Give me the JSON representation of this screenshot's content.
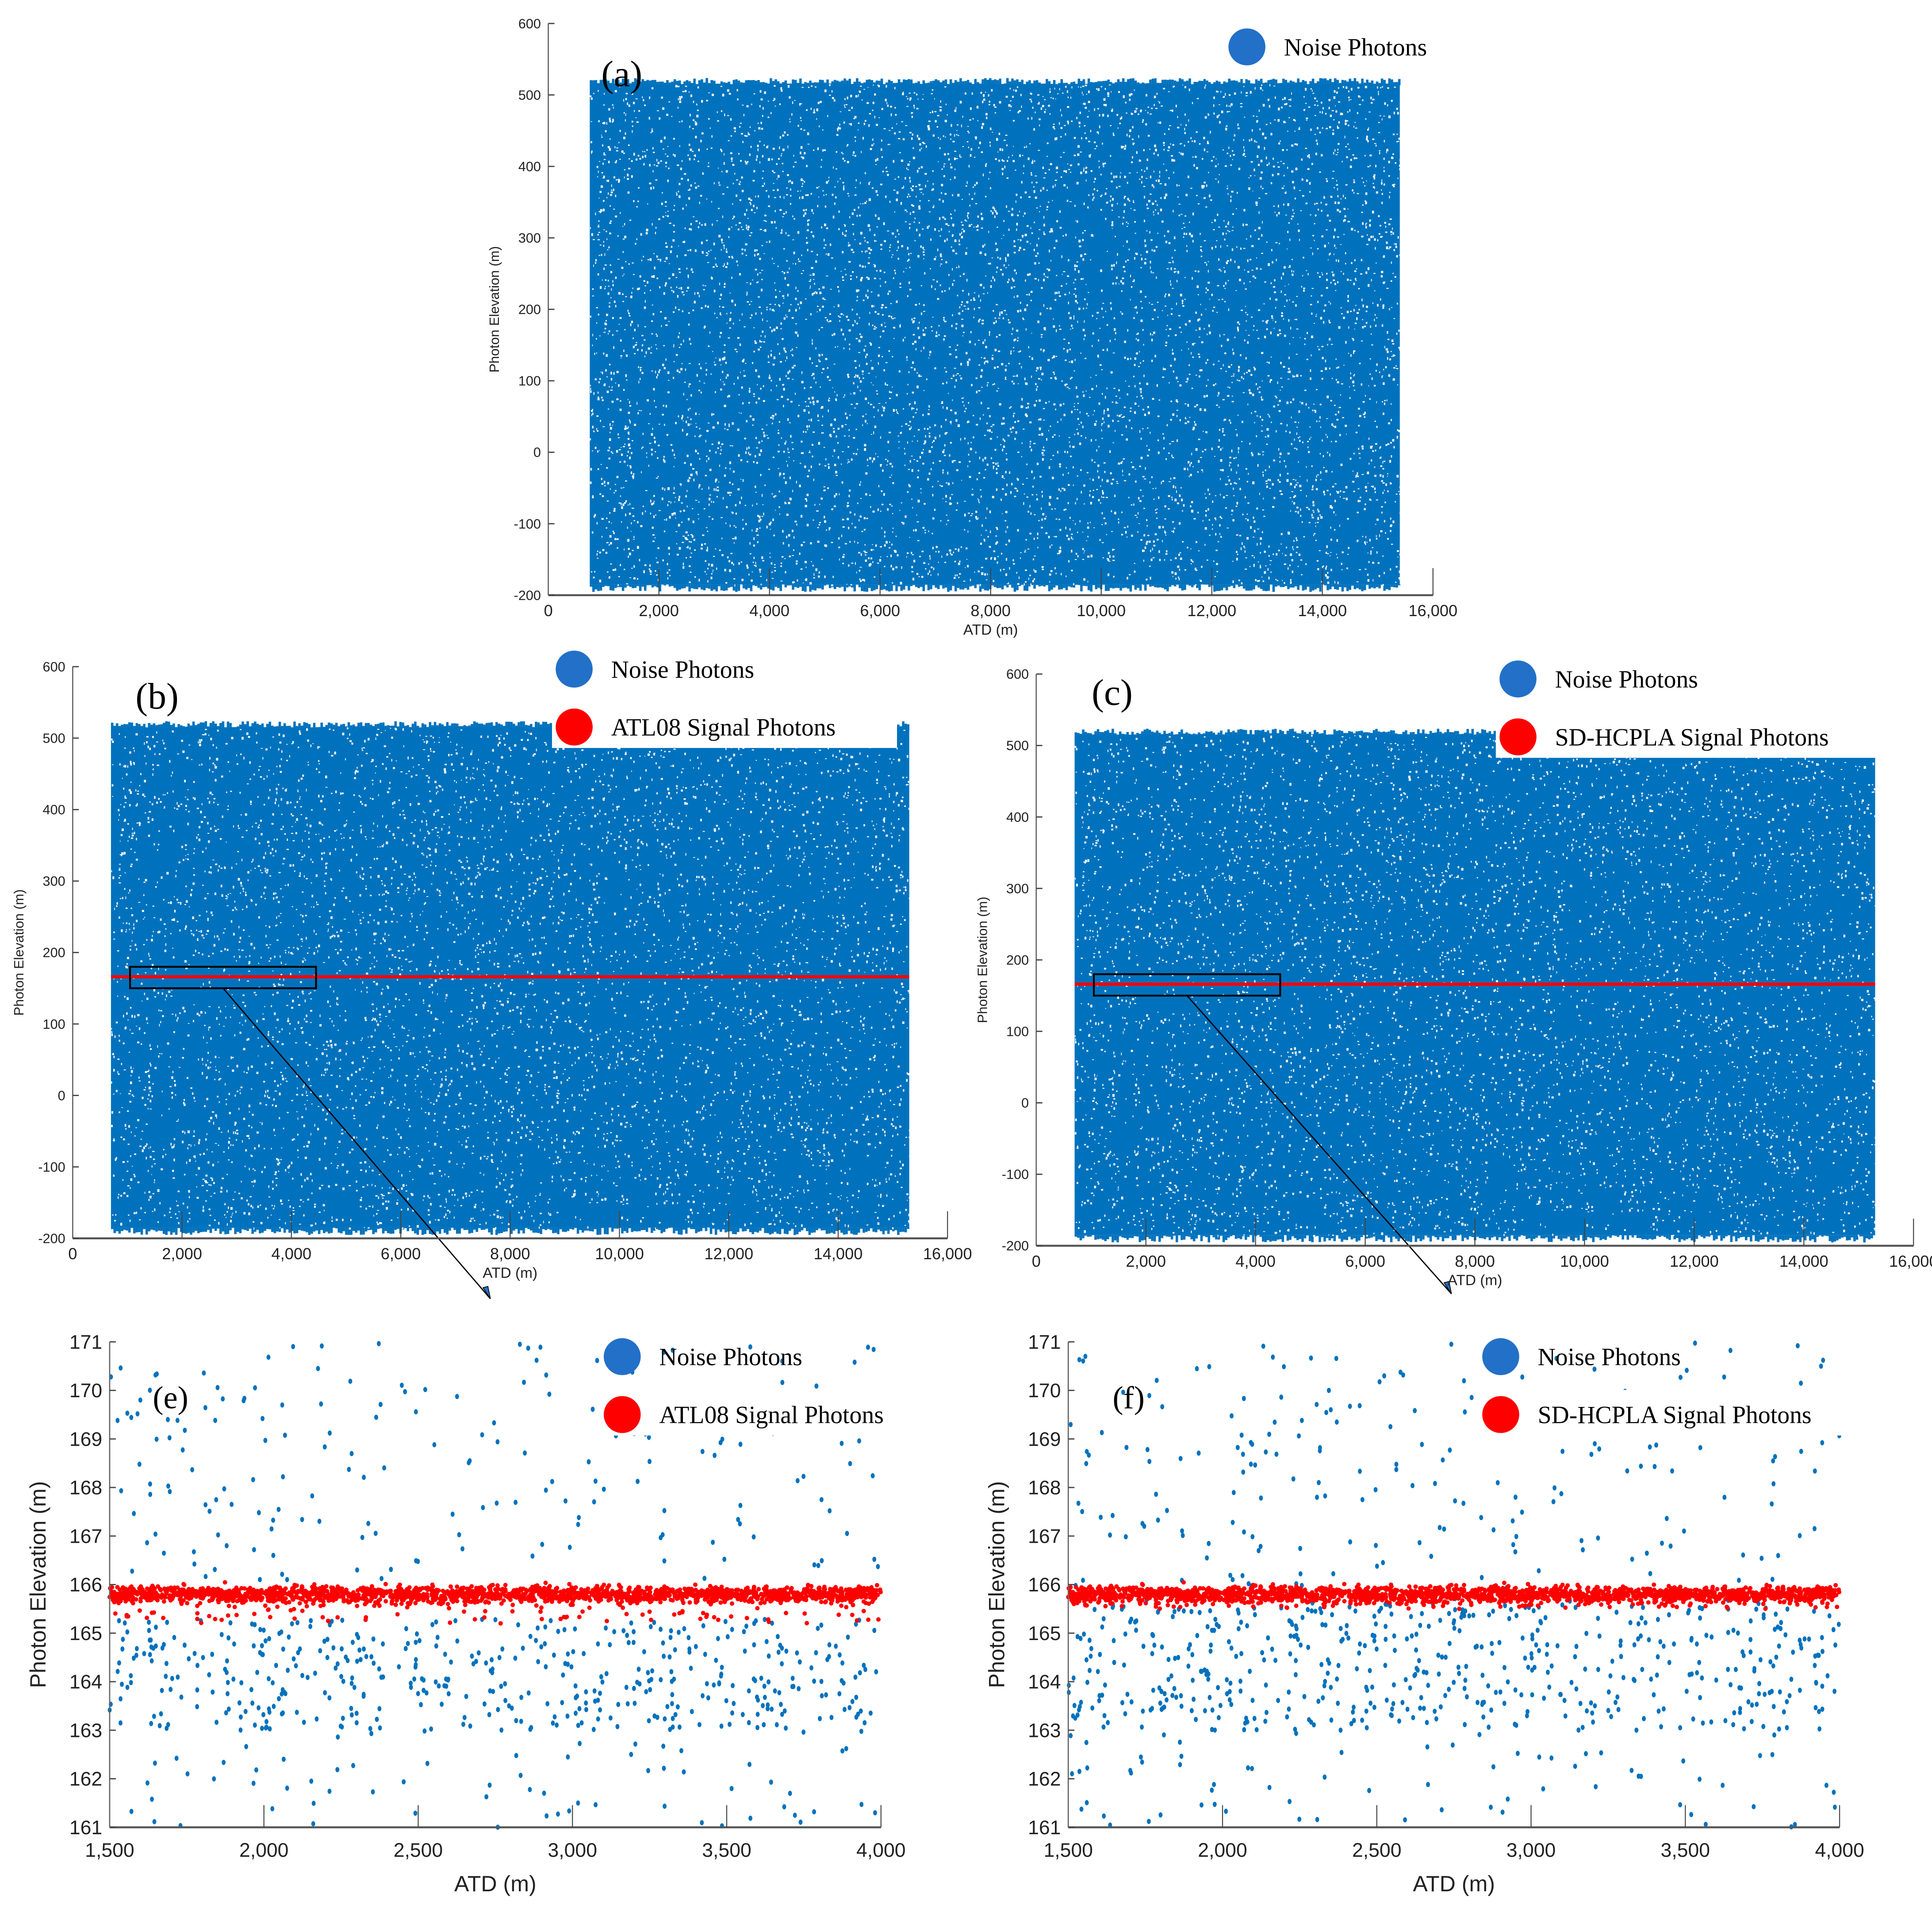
{
  "colors": {
    "noise": "#0072BD",
    "noise_legend": "#2370C8",
    "signal": "#FF0000",
    "axis": "#666666",
    "text": "#000000"
  },
  "chart_data": [
    {
      "id": "a",
      "type": "scatter",
      "panel_label": "(a)",
      "title": "",
      "xlabel": "ATD (m)",
      "ylabel": "Photon Elevation (m)",
      "xlim": [
        0,
        16000
      ],
      "ylim": [
        -200,
        600
      ],
      "xticks": [
        0,
        2000,
        4000,
        6000,
        8000,
        10000,
        12000,
        14000,
        16000
      ],
      "xtick_labels": [
        "0",
        "2,000",
        "4,000",
        "6,000",
        "8,000",
        "10,000",
        "12,000",
        "14,000",
        "16,000"
      ],
      "yticks": [
        -200,
        -100,
        0,
        100,
        200,
        300,
        400,
        500,
        600
      ],
      "ytick_labels": [
        "-200",
        "-100",
        "0",
        "100",
        "200",
        "300",
        "400",
        "500",
        "600"
      ],
      "grid": false,
      "legend": [
        {
          "label": "Noise Photons",
          "color": "#2370C8"
        }
      ],
      "legend_position": "upper right",
      "series": [
        {
          "name": "Noise Photons",
          "color": "#0072BD",
          "x_range": [
            750,
            15400
          ],
          "y_range": [
            -185,
            515
          ],
          "distribution": "uniform dense"
        }
      ]
    },
    {
      "id": "b",
      "type": "scatter",
      "panel_label": "(b)",
      "xlabel": "ATD (m)",
      "ylabel": "Photon Elevation (m)",
      "xlim": [
        0,
        16000
      ],
      "ylim": [
        -200,
        600
      ],
      "xticks": [
        0,
        2000,
        4000,
        6000,
        8000,
        10000,
        12000,
        14000,
        16000
      ],
      "xtick_labels": [
        "0",
        "2,000",
        "4,000",
        "6,000",
        "8,000",
        "10,000",
        "12,000",
        "14,000",
        "16,000"
      ],
      "yticks": [
        -200,
        -100,
        0,
        100,
        200,
        300,
        400,
        500,
        600
      ],
      "ytick_labels": [
        "-200",
        "-100",
        "0",
        "100",
        "200",
        "300",
        "400",
        "500",
        "600"
      ],
      "grid": false,
      "legend": [
        {
          "label": "Noise Photons",
          "color": "#2370C8"
        },
        {
          "label": "ATL08 Signal Photons",
          "color": "#FF0000"
        }
      ],
      "legend_position": "upper center",
      "series": [
        {
          "name": "Noise Photons",
          "color": "#0072BD",
          "x_range": [
            700,
            15300
          ],
          "y_range": [
            -185,
            515
          ],
          "distribution": "uniform dense"
        },
        {
          "name": "ATL08 Signal Photons",
          "color": "#FF0000",
          "x_range": [
            700,
            15300
          ],
          "y_value": 166
        }
      ],
      "annotation": {
        "zoom_box": {
          "x": [
            1500,
            4000
          ],
          "y": [
            150,
            180
          ]
        },
        "arrow_to": "(e)"
      }
    },
    {
      "id": "c",
      "type": "scatter",
      "panel_label": "(c)",
      "xlabel": "ATD (m)",
      "ylabel": "Photon Elevation (m)",
      "xlim": [
        0,
        16000
      ],
      "ylim": [
        -200,
        600
      ],
      "xticks": [
        0,
        2000,
        4000,
        6000,
        8000,
        10000,
        12000,
        14000,
        16000
      ],
      "xtick_labels": [
        "0",
        "2,000",
        "4,000",
        "6,000",
        "8,000",
        "10,000",
        "12,000",
        "14,000",
        "16,000"
      ],
      "yticks": [
        -200,
        -100,
        0,
        100,
        200,
        300,
        400,
        500,
        600
      ],
      "ytick_labels": [
        "-200",
        "-100",
        "0",
        "100",
        "200",
        "300",
        "400",
        "500",
        "600"
      ],
      "grid": false,
      "legend": [
        {
          "label": "Noise Photons",
          "color": "#2370C8"
        },
        {
          "label": "SD-HCPLA Signal Photons",
          "color": "#FF0000"
        }
      ],
      "legend_position": "upper center",
      "series": [
        {
          "name": "Noise Photons",
          "color": "#0072BD",
          "x_range": [
            700,
            15300
          ],
          "y_range": [
            -185,
            515
          ],
          "distribution": "uniform dense"
        },
        {
          "name": "SD-HCPLA Signal Photons",
          "color": "#FF0000",
          "x_range": [
            700,
            15300
          ],
          "y_value": 166
        }
      ],
      "annotation": {
        "zoom_box": {
          "x": [
            1500,
            4000
          ],
          "y": [
            150,
            180
          ]
        },
        "arrow_to": "(f)"
      }
    },
    {
      "id": "e",
      "type": "scatter",
      "panel_label": "(e)",
      "xlabel": "ATD (m)",
      "ylabel": "Photon Elevation (m)",
      "xlim": [
        1500,
        4000
      ],
      "ylim": [
        161,
        171
      ],
      "xticks": [
        1500,
        2000,
        2500,
        3000,
        3500,
        4000
      ],
      "xtick_labels": [
        "1,500",
        "2,000",
        "2,500",
        "3,000",
        "3,500",
        "4,000"
      ],
      "yticks": [
        161,
        162,
        163,
        164,
        165,
        166,
        167,
        168,
        169,
        170,
        171
      ],
      "ytick_labels": [
        "161",
        "162",
        "163",
        "164",
        "165",
        "166",
        "167",
        "168",
        "169",
        "170",
        "171"
      ],
      "grid": false,
      "legend": [
        {
          "label": "Noise Photons",
          "color": "#2370C8"
        },
        {
          "label": "ATL08 Signal Photons",
          "color": "#FF0000"
        }
      ],
      "legend_position": "upper center",
      "series": [
        {
          "name": "Noise Photons",
          "color": "#0072BD",
          "x_range": [
            1500,
            4000
          ],
          "y_range": [
            161,
            171
          ],
          "distribution": "sparse, denser 163-165.5"
        },
        {
          "name": "ATL08 Signal Photons",
          "color": "#FF0000",
          "x_range": [
            1500,
            4000
          ],
          "y_band": [
            165.2,
            166.1
          ],
          "y_center": 165.8
        }
      ]
    },
    {
      "id": "f",
      "type": "scatter",
      "panel_label": "(f)",
      "xlabel": "ATD (m)",
      "ylabel": "Photon Elevation (m)",
      "xlim": [
        1500,
        4000
      ],
      "ylim": [
        161,
        171
      ],
      "xticks": [
        1500,
        2000,
        2500,
        3000,
        3500,
        4000
      ],
      "xtick_labels": [
        "1,500",
        "2,000",
        "2,500",
        "3,000",
        "3,500",
        "4,000"
      ],
      "yticks": [
        161,
        162,
        163,
        164,
        165,
        166,
        167,
        168,
        169,
        170,
        171
      ],
      "ytick_labels": [
        "161",
        "162",
        "163",
        "164",
        "165",
        "166",
        "167",
        "168",
        "169",
        "170",
        "171"
      ],
      "grid": false,
      "legend": [
        {
          "label": "Noise Photons",
          "color": "#2370C8"
        },
        {
          "label": "SD-HCPLA Signal Photons",
          "color": "#FF0000"
        }
      ],
      "legend_position": "upper center",
      "series": [
        {
          "name": "Noise Photons",
          "color": "#0072BD",
          "x_range": [
            1500,
            4000
          ],
          "y_range": [
            161,
            171
          ],
          "distribution": "sparse, denser 163-165.6"
        },
        {
          "name": "SD-HCPLA Signal Photons",
          "color": "#FF0000",
          "x_range": [
            1500,
            4000
          ],
          "y_band": [
            165.5,
            166.05
          ],
          "y_center": 165.8
        }
      ]
    }
  ]
}
